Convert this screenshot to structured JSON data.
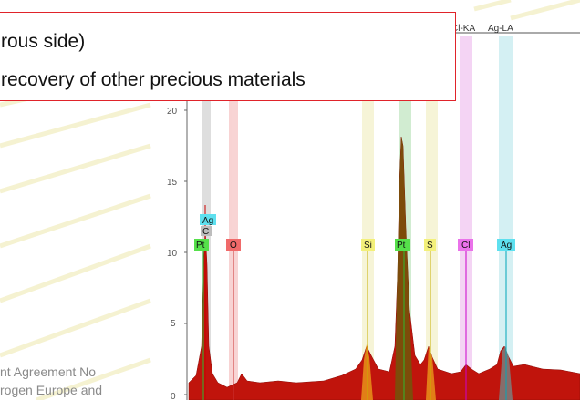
{
  "callout": {
    "line1": "rous side)",
    "line2": "recovery of other precious materials"
  },
  "footer": {
    "line1": "nt Agreement No",
    "line2": "rogen Europe and"
  },
  "spectrum": {
    "header_labels": [
      "Cl-KA",
      "Ag-LA"
    ],
    "y_ticks": [
      "0",
      "5",
      "10",
      "15",
      "20"
    ],
    "peak_labels": [
      {
        "text": "Ag",
        "color": "#5ee0ef"
      },
      {
        "text": "C",
        "color": "#bdbdbd"
      },
      {
        "text": "Pt",
        "color": "#55e04a"
      },
      {
        "text": "O",
        "color": "#f06a6a"
      },
      {
        "text": "Si",
        "color": "#f3f07a"
      },
      {
        "text": "Pt",
        "color": "#55e04a"
      },
      {
        "text": "S",
        "color": "#f3f07a"
      },
      {
        "text": "Cl",
        "color": "#ea72ea"
      },
      {
        "text": "Ag",
        "color": "#5ee0ef"
      }
    ]
  },
  "colors": {
    "callout_border": "#e0232a",
    "spectrum_fill": "#c0140c",
    "stripe": "#f4f0c8"
  }
}
